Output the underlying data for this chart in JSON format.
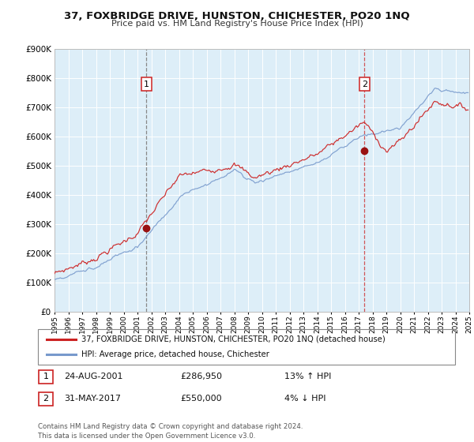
{
  "title": "37, FOXBRIDGE DRIVE, HUNSTON, CHICHESTER, PO20 1NQ",
  "subtitle": "Price paid vs. HM Land Registry's House Price Index (HPI)",
  "background_color": "#ffffff",
  "plot_bg_color": "#ddeef8",
  "grid_color": "#ffffff",
  "red_line_color": "#cc2222",
  "blue_line_color": "#7799cc",
  "sale1_year": 2001.646,
  "sale1_price": 286950,
  "sale1_label": "24-AUG-2001",
  "sale1_pct": "13% ↑ HPI",
  "sale2_year": 2017.414,
  "sale2_price": 550000,
  "sale2_label": "31-MAY-2017",
  "sale2_pct": "4% ↓ HPI",
  "xmin": 1995,
  "xmax": 2025,
  "ymin": 0,
  "ymax": 900000,
  "yticks": [
    0,
    100000,
    200000,
    300000,
    400000,
    500000,
    600000,
    700000,
    800000,
    900000
  ],
  "ytick_labels": [
    "£0",
    "£100K",
    "£200K",
    "£300K",
    "£400K",
    "£500K",
    "£600K",
    "£700K",
    "£800K",
    "£900K"
  ],
  "legend_red_label": "37, FOXBRIDGE DRIVE, HUNSTON, CHICHESTER, PO20 1NQ (detached house)",
  "legend_blue_label": "HPI: Average price, detached house, Chichester",
  "footnote": "Contains HM Land Registry data © Crown copyright and database right 2024.\nThis data is licensed under the Open Government Licence v3.0."
}
